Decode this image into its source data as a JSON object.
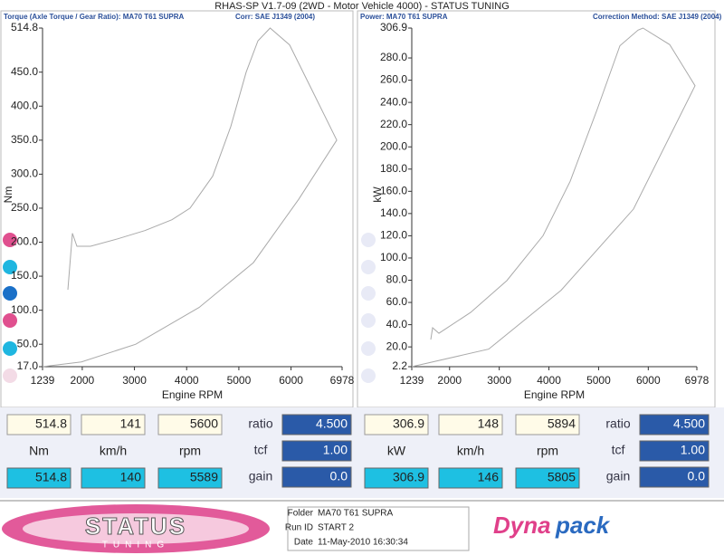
{
  "title": "RHAS-SP V1.7-09  (2WD - Motor Vehicle 4000) - STATUS TUNING",
  "chart_data": [
    {
      "type": "line",
      "title": "Torque (Axle Torque / Gear Ratio): MA70 T61 SUPRA",
      "subtitle": "Corr: SAE J1349 (2004)",
      "y_label": "Nm",
      "x_label": "Engine RPM",
      "xlim": [
        1239,
        6978
      ],
      "xticks": [
        1239,
        2000,
        3000,
        4000,
        5000,
        6000,
        6978
      ],
      "ylim": [
        17,
        514.8
      ],
      "yticks": [
        {
          "value": 17,
          "label": "17.0"
        },
        {
          "value": 50,
          "label": "50.0"
        },
        {
          "value": 100,
          "label": "100.0"
        },
        {
          "value": 150,
          "label": "150.0"
        },
        {
          "value": 200,
          "label": "200.0"
        },
        {
          "value": 250,
          "label": "250.0"
        },
        {
          "value": 300,
          "label": "300.0"
        },
        {
          "value": 350,
          "label": "350.0"
        },
        {
          "value": 400,
          "label": "400.0"
        },
        {
          "value": 450,
          "label": "450.0"
        },
        514.8
      ],
      "series": [
        {
          "color": "#aaaaaa",
          "x": [
            1725,
            1811,
            1898,
            2158,
            2678,
            3198,
            3719,
            4065,
            4499,
            4846,
            5140,
            5366,
            5600,
            5973,
            6406,
            6875,
            6146,
            5279,
            4239,
            3025,
            1985,
            1239
          ],
          "values": [
            130,
            213,
            194,
            194,
            205,
            217,
            233,
            250,
            297,
            370,
            450,
            496,
            514.8,
            490,
            423,
            350,
            263,
            170,
            104,
            50,
            24,
            17
          ]
        }
      ]
    },
    {
      "type": "line",
      "title": "Power: MA70 T61 SUPRA",
      "subtitle": "Correction Method: SAE J1349 (2004)",
      "y_label": "kW",
      "x_label": "Engine RPM",
      "xlim": [
        1239,
        6978
      ],
      "xticks": [
        1239,
        2000,
        3000,
        4000,
        5000,
        6000,
        6978
      ],
      "ylim": [
        2.2,
        306.9
      ],
      "yticks": [
        2.2,
        {
          "value": 20,
          "label": "20.0"
        },
        {
          "value": 40,
          "label": "40.0"
        },
        {
          "value": 60,
          "label": "60.0"
        },
        {
          "value": 80,
          "label": "80.0"
        },
        {
          "value": 100,
          "label": "100.0"
        },
        {
          "value": 120,
          "label": "120.0"
        },
        {
          "value": 140,
          "label": "140.0"
        },
        {
          "value": 160,
          "label": "160.0"
        },
        {
          "value": 180,
          "label": "180.0"
        },
        {
          "value": 200,
          "label": "200.0"
        },
        {
          "value": 220,
          "label": "220.0"
        },
        {
          "value": 240,
          "label": "240.0"
        },
        {
          "value": 260,
          "label": "260.0"
        },
        {
          "value": 280,
          "label": "280.0"
        },
        306.9
      ],
      "series": [
        {
          "color": "#aaaaaa",
          "x": [
            1622,
            1658,
            1786,
            2423,
            3152,
            3881,
            4427,
            4974,
            5429,
            5794,
            5894,
            6432,
            6942,
            5703,
            4246,
            2788,
            1239
          ],
          "values": [
            26.6,
            37.2,
            32.3,
            51,
            79.6,
            120,
            169,
            234,
            291,
            305,
            306.9,
            292,
            255,
            144,
            71,
            18,
            2.2
          ]
        }
      ]
    }
  ],
  "readouts": [
    {
      "max": [
        "514.8",
        "141",
        "5600"
      ],
      "units": [
        "Nm",
        "km/h",
        "rpm"
      ],
      "current": [
        "514.8",
        "140",
        "5589"
      ],
      "params": [
        {
          "label": "ratio",
          "value": "4.500"
        },
        {
          "label": "tcf",
          "value": "1.00"
        },
        {
          "label": "gain",
          "value": "0.0"
        }
      ]
    },
    {
      "max": [
        "306.9",
        "148",
        "5894"
      ],
      "units": [
        "kW",
        "km/h",
        "rpm"
      ],
      "current": [
        "306.9",
        "146",
        "5805"
      ],
      "params": [
        {
          "label": "ratio",
          "value": "4.500"
        },
        {
          "label": "tcf",
          "value": "1.00"
        },
        {
          "label": "gain",
          "value": "0.0"
        }
      ]
    }
  ],
  "footer": {
    "logo_left": [
      "STATUS",
      "TUNING"
    ],
    "fields": [
      {
        "label": "Folder",
        "value": "MA70 T61 SUPRA"
      },
      {
        "label": "Run ID",
        "value": "START 2"
      },
      {
        "label": "Date",
        "value": "11-May-2010  16:30:34"
      }
    ],
    "logo_right": [
      "Dyna",
      "pack"
    ]
  }
}
